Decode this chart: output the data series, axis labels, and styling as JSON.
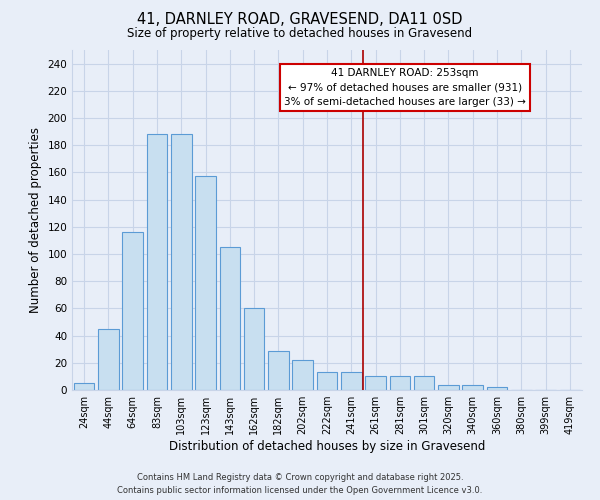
{
  "title": "41, DARNLEY ROAD, GRAVESEND, DA11 0SD",
  "subtitle": "Size of property relative to detached houses in Gravesend",
  "xlabel": "Distribution of detached houses by size in Gravesend",
  "ylabel": "Number of detached properties",
  "bar_labels": [
    "24sqm",
    "44sqm",
    "64sqm",
    "83sqm",
    "103sqm",
    "123sqm",
    "143sqm",
    "162sqm",
    "182sqm",
    "202sqm",
    "222sqm",
    "241sqm",
    "261sqm",
    "281sqm",
    "301sqm",
    "320sqm",
    "340sqm",
    "360sqm",
    "380sqm",
    "399sqm",
    "419sqm"
  ],
  "bar_values": [
    5,
    45,
    116,
    188,
    188,
    157,
    105,
    60,
    29,
    22,
    13,
    13,
    10,
    10,
    10,
    4,
    4,
    2,
    0,
    0,
    0
  ],
  "bar_color": "#c8dff0",
  "bar_edge_color": "#5b9bd5",
  "vline_pos": 11.5,
  "vline_color": "#aa0000",
  "ylim": [
    0,
    250
  ],
  "yticks": [
    0,
    20,
    40,
    60,
    80,
    100,
    120,
    140,
    160,
    180,
    200,
    220,
    240
  ],
  "annotation_title": "41 DARNLEY ROAD: 253sqm",
  "annotation_line1": "← 97% of detached houses are smaller (931)",
  "annotation_line2": "3% of semi-detached houses are larger (33) →",
  "annotation_box_color": "#ffffff",
  "annotation_box_edge": "#cc0000",
  "footer_line1": "Contains HM Land Registry data © Crown copyright and database right 2025.",
  "footer_line2": "Contains public sector information licensed under the Open Government Licence v3.0.",
  "background_color": "#e8eef8",
  "grid_color": "#c8d4e8",
  "figsize": [
    6.0,
    5.0
  ],
  "dpi": 100
}
